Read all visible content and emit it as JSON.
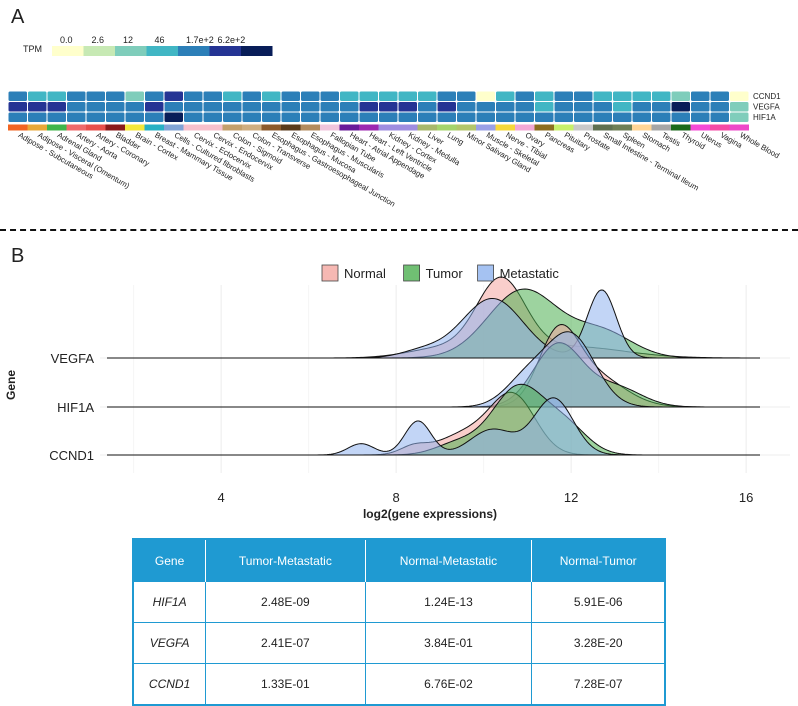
{
  "panel_labels": {
    "a": "A",
    "b": "B"
  },
  "colors": {
    "tpm_scale": [
      "#ffffcc",
      "#c7e9b4",
      "#7fcdbb",
      "#41b6c4",
      "#2c7fb8",
      "#253494",
      "#081d58"
    ],
    "normal": "#f4a6a0",
    "tumor": "#4caf50",
    "metastatic": "#8fb3ef",
    "table_header": "#1f9ad2"
  },
  "chart_data": [
    {
      "type": "heatmap",
      "legend_title": "TPM",
      "legend_ticks": [
        "0.0",
        "2.6",
        "12",
        "46",
        "1.7e+2",
        "6.2e+2"
      ],
      "rows": [
        "CCND1",
        "VEGFA",
        "HIF1A"
      ],
      "columns": [
        "Adipose - Subcutaneous",
        "Adipose - Visceral (Omentum)",
        "Adrenal Gland",
        "Artery - Aorta",
        "Artery - Coronary",
        "Bladder",
        "Brain - Cortex",
        "Breast - Mammary Tissue",
        "Cells - Cultured fibroblasts",
        "Cervix - Ectocervix",
        "Cervix - Endocervix",
        "Colon - Sigmoid",
        "Colon - Transverse",
        "Esophagus - Gastroesophageal Junction",
        "Esophagus - Mucosa",
        "Esophagus - Muscularis",
        "Fallopian Tube",
        "Heart - Atrial Appendage",
        "Heart - Left Ventricle",
        "Kidney - Cortex",
        "Kidney - Medulla",
        "Liver",
        "Lung",
        "Minor Salivary Gland",
        "Muscle - Skeletal",
        "Nerve - Tibial",
        "Ovary",
        "Pancreas",
        "Pituitary",
        "Prostate",
        "Small Intestine - Terminal Ileum",
        "Spleen",
        "Stomach",
        "Testis",
        "Thyroid",
        "Uterus",
        "Vagina",
        "Whole Blood"
      ],
      "tissue_colors": [
        "#f26522",
        "#e8a838",
        "#3fb54a",
        "#f06a6a",
        "#e8504b",
        "#8b1a1a",
        "#f5e73a",
        "#27b1c4",
        "#80a3d6",
        "#f7c0cc",
        "#f7c0cc",
        "#c5a06b",
        "#cfae80",
        "#8c5a2b",
        "#5a3a1b",
        "#b38b5d",
        "#f0c5dc",
        "#6a1b9a",
        "#9c27b0",
        "#9f8de0",
        "#9f8de0",
        "#a8b86b",
        "#a5d46b",
        "#b3c66a",
        "#9aa0e6",
        "#f6d83a",
        "#f3a8d5",
        "#8d6e1f",
        "#c8f06a",
        "#c9c9c9",
        "#5f7050",
        "#6e7f55",
        "#ffd596",
        "#a6a6a6",
        "#1b6a1b",
        "#f54ad6",
        "#f54aa5",
        "#ee48c8"
      ],
      "values": [
        [
          4,
          3,
          3,
          4,
          4,
          4,
          2,
          4,
          5,
          4,
          4,
          3,
          4,
          3,
          4,
          4,
          4,
          3,
          3,
          3,
          3,
          3,
          4,
          4,
          0,
          3,
          4,
          3,
          4,
          4,
          3,
          3,
          3,
          3,
          2,
          4,
          4,
          0
        ],
        [
          5,
          5,
          5,
          4,
          4,
          4,
          4,
          5,
          4,
          4,
          4,
          4,
          4,
          4,
          4,
          4,
          4,
          4,
          5,
          5,
          5,
          4,
          5,
          4,
          4,
          4,
          4,
          3,
          4,
          4,
          4,
          3,
          4,
          4,
          6,
          4,
          4,
          2
        ],
        [
          4,
          4,
          4,
          4,
          4,
          4,
          4,
          4,
          6,
          4,
          4,
          4,
          4,
          4,
          4,
          4,
          4,
          4,
          4,
          4,
          4,
          4,
          4,
          4,
          4,
          4,
          4,
          4,
          4,
          4,
          4,
          4,
          4,
          4,
          4,
          4,
          4,
          2
        ]
      ]
    },
    {
      "type": "area",
      "subtype": "ridgeline",
      "xlabel": "log2(gene expressions)",
      "ylabel": "Gene",
      "xticks": [
        4,
        8,
        12,
        16
      ],
      "xlim": [
        0.5,
        16.8
      ],
      "genes": [
        "CCND1",
        "HIF1A",
        "VEGFA"
      ],
      "legend_position": "top",
      "grid": true,
      "series": [
        {
          "name": "Normal",
          "color_key": "normal",
          "ridges": {
            "VEGFA": [
              [
                10.4,
                2.6,
                0.55
              ],
              [
                9.1,
                0.35,
                0.8
              ],
              [
                12.0,
                0.4,
                1.2
              ]
            ],
            "HIF1A": [
              [
                11.7,
                2.3,
                0.45
              ],
              [
                12.5,
                1.1,
                0.7
              ]
            ],
            "CCND1": [
              [
                10.7,
                1.9,
                0.5
              ],
              [
                9.7,
                0.8,
                0.7
              ],
              [
                8.4,
                0.25,
                0.3
              ]
            ]
          }
        },
        {
          "name": "Tumor",
          "color_key": "tumor",
          "ridges": {
            "VEGFA": [
              [
                10.9,
                2.4,
                0.8
              ],
              [
                12.7,
                0.9,
                0.7
              ]
            ],
            "HIF1A": [
              [
                11.7,
                2.2,
                0.55
              ],
              [
                13.0,
                0.7,
                0.6
              ]
            ],
            "CCND1": [
              [
                10.8,
                2.4,
                0.6
              ],
              [
                11.9,
                0.9,
                0.5
              ],
              [
                9.4,
                0.4,
                0.5
              ]
            ]
          }
        },
        {
          "name": "Metastatic",
          "color_key": "metastatic",
          "ridges": {
            "VEGFA": [
              [
                10.2,
                2.1,
                0.7
              ],
              [
                12.7,
                2.4,
                0.33
              ],
              [
                8.6,
                0.25,
                0.5
              ]
            ],
            "HIF1A": [
              [
                12.0,
                2.5,
                0.55
              ],
              [
                11.0,
                1.0,
                0.5
              ]
            ],
            "CCND1": [
              [
                11.6,
                2.0,
                0.45
              ],
              [
                8.5,
                1.2,
                0.3
              ],
              [
                7.2,
                0.4,
                0.3
              ],
              [
                10.2,
                0.9,
                0.5
              ]
            ]
          }
        }
      ]
    },
    {
      "type": "table",
      "columns": [
        "Gene",
        "Tumor-Metastatic",
        "Normal-Metastatic",
        "Normal-Tumor"
      ],
      "rows": [
        {
          "gene": "HIF1A",
          "values": [
            "2.48E-09",
            "1.24E-13",
            "5.91E-06"
          ]
        },
        {
          "gene": "VEGFA",
          "values": [
            "2.41E-07",
            "3.84E-01",
            "3.28E-20"
          ]
        },
        {
          "gene": "CCND1",
          "values": [
            "1.33E-01",
            "6.76E-02",
            "7.28E-07"
          ]
        }
      ]
    }
  ]
}
